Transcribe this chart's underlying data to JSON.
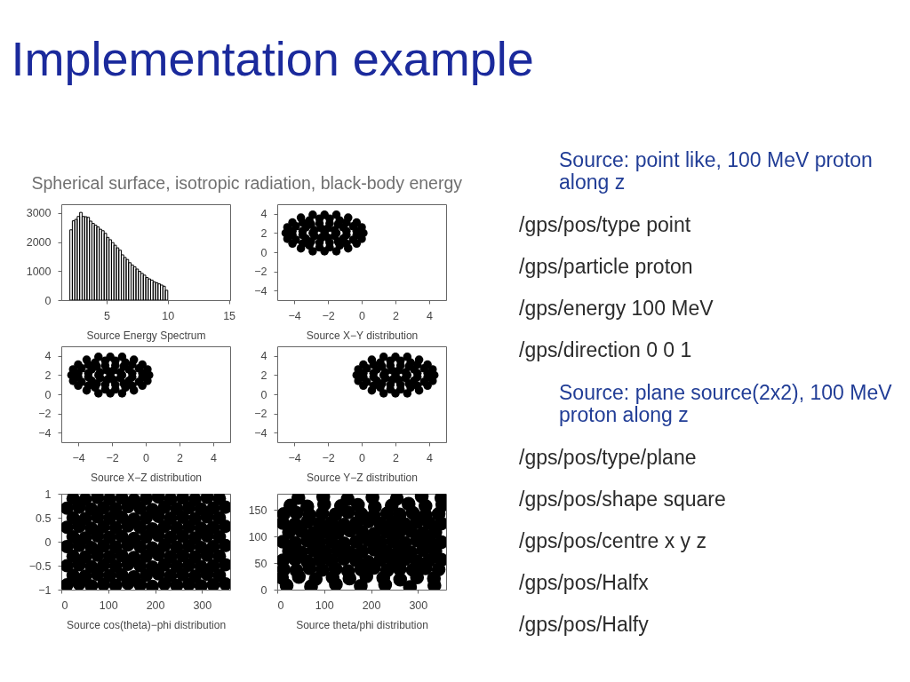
{
  "chart_data": [
    {
      "type": "other",
      "title": "Implementation example"
    },
    {
      "type": "histogram",
      "title": "Spherical surface, isotropic radiation, black-body energy",
      "xlabel": "Source Energy Spectrum",
      "color": "#000000",
      "bins": [
        2.0,
        2.2,
        2.4,
        2.6,
        2.8,
        3.0,
        3.2,
        3.4,
        3.6,
        3.8,
        4.0,
        4.2,
        4.4,
        4.6,
        4.8,
        5.0,
        5.2,
        5.4,
        5.6,
        5.8,
        6.0,
        6.2,
        6.4,
        6.6,
        6.8,
        7.0,
        7.2,
        7.4,
        7.6,
        7.8,
        8.0,
        8.2,
        8.4,
        8.6,
        8.8,
        9.0,
        9.2,
        9.4,
        9.6,
        9.8,
        10.0
      ],
      "values": [
        2420,
        2730,
        2780,
        2880,
        3020,
        2880,
        2870,
        2850,
        2720,
        2640,
        2580,
        2520,
        2440,
        2390,
        2300,
        2160,
        2080,
        1980,
        1890,
        1800,
        1720,
        1560,
        1470,
        1400,
        1290,
        1210,
        1150,
        1070,
        990,
        920,
        860,
        780,
        730,
        690,
        630,
        600,
        560,
        520,
        480,
        340
      ],
      "xlim": [
        1.3,
        15.1
      ],
      "ylim": [
        0,
        3300
      ],
      "xticks": [
        5,
        10,
        15
      ],
      "yticks": [
        0,
        1000,
        2000,
        3000
      ]
    },
    {
      "type": "scatter",
      "xlabel": "Source X−Y distribution",
      "marker": "circle",
      "xlim": [
        -5,
        5
      ],
      "ylim": [
        -5,
        5
      ],
      "xticks": [
        -4,
        -2,
        0,
        2,
        4
      ],
      "yticks": [
        -4,
        -2,
        0,
        2,
        4
      ],
      "series": [
        {
          "color": "#000000",
          "x": [
            0.1,
            0.0,
            -0.3,
            -0.8,
            -1.5,
            -2.2,
            -2.9,
            -3.6,
            -4.1,
            -4.4,
            -4.5,
            -4.4,
            -4.1,
            -3.6,
            -2.9,
            -2.2,
            -1.5,
            -0.8,
            -0.3,
            0.0,
            -0.3,
            -0.5,
            -0.9,
            -1.3,
            -1.9,
            -2.5,
            -3.1,
            -3.5,
            -3.9,
            -4.1,
            -4.1,
            -3.9,
            -3.5,
            -3.1,
            -2.5,
            -1.9,
            -1.3,
            -0.9,
            -0.5,
            -0.3,
            -0.9,
            -1.1,
            -1.4,
            -1.9,
            -2.5,
            -3.0,
            -3.3,
            -3.5,
            -3.5,
            -3.3,
            -3.0,
            -2.5,
            -1.9,
            -1.4,
            -1.1,
            -0.9,
            -1.5,
            -1.6,
            -2.0,
            -2.4,
            -2.8,
            -2.9,
            -2.8,
            -2.4,
            -2.0,
            -1.6,
            -2.2
          ],
          "values": [
            2.0,
            2.6,
            3.1,
            3.6,
            3.9,
            3.9,
            3.9,
            3.6,
            3.1,
            2.6,
            2.0,
            1.4,
            0.9,
            0.4,
            0.1,
            0.1,
            0.1,
            0.4,
            0.9,
            1.4,
            2.2,
            2.7,
            3.1,
            3.3,
            3.5,
            3.5,
            3.3,
            3.1,
            2.7,
            2.2,
            1.8,
            1.3,
            0.9,
            0.7,
            0.5,
            0.5,
            0.7,
            0.9,
            1.3,
            1.8,
            2.2,
            2.6,
            2.9,
            3.0,
            3.0,
            2.9,
            2.6,
            2.2,
            1.8,
            1.4,
            1.1,
            1.0,
            1.0,
            1.1,
            1.4,
            1.8,
            2.0,
            2.3,
            2.5,
            2.5,
            2.3,
            2.0,
            1.7,
            1.5,
            1.5,
            1.7,
            2.0
          ]
        }
      ]
    },
    {
      "type": "scatter",
      "xlabel": "Source X−Z distribution",
      "marker": "circle",
      "xlim": [
        -5,
        5
      ],
      "ylim": [
        -5,
        5
      ],
      "xticks": [
        -4,
        -2,
        0,
        2,
        4
      ],
      "yticks": [
        -4,
        -2,
        0,
        2,
        4
      ],
      "series": [
        {
          "color": "#000000",
          "x": [
            0.2,
            0.1,
            -0.2,
            -0.7,
            -1.4,
            -2.1,
            -2.8,
            -3.5,
            -4.0,
            -4.3,
            -4.4,
            -4.3,
            -4.0,
            -3.5,
            -2.8,
            -2.1,
            -1.4,
            -0.7,
            -0.2,
            0.1,
            -0.2,
            -0.4,
            -0.8,
            -1.2,
            -1.8,
            -2.4,
            -3.0,
            -3.4,
            -3.8,
            -4.0,
            -4.0,
            -3.8,
            -3.4,
            -3.0,
            -2.4,
            -1.8,
            -1.2,
            -0.8,
            -0.4,
            -0.2,
            -0.8,
            -1.0,
            -1.3,
            -1.8,
            -2.4,
            -2.9,
            -3.2,
            -3.4,
            -3.4,
            -3.2,
            -2.9,
            -2.4,
            -1.8,
            -1.3,
            -1.0,
            -0.8,
            -1.4,
            -1.5,
            -1.9,
            -2.3,
            -2.7,
            -2.8,
            -2.7,
            -2.3,
            -1.9,
            -1.5,
            -2.1
          ],
          "values": [
            2.0,
            2.6,
            3.1,
            3.6,
            3.9,
            3.9,
            3.9,
            3.6,
            3.1,
            2.6,
            2.0,
            1.4,
            0.9,
            0.4,
            0.1,
            0.1,
            0.1,
            0.4,
            0.9,
            1.4,
            2.2,
            2.7,
            3.1,
            3.3,
            3.5,
            3.5,
            3.3,
            3.1,
            2.7,
            2.2,
            1.8,
            1.3,
            0.9,
            0.7,
            0.5,
            0.5,
            0.7,
            0.9,
            1.3,
            1.8,
            2.2,
            2.6,
            2.9,
            3.0,
            3.0,
            2.9,
            2.6,
            2.2,
            1.8,
            1.4,
            1.1,
            1.0,
            1.0,
            1.1,
            1.4,
            1.8,
            2.0,
            2.3,
            2.5,
            2.5,
            2.3,
            2.0,
            1.7,
            1.5,
            1.5,
            1.7,
            2.0
          ]
        }
      ]
    },
    {
      "type": "scatter",
      "xlabel": "Source Y−Z distribution",
      "marker": "circle",
      "xlim": [
        -5,
        5
      ],
      "ylim": [
        -5,
        5
      ],
      "xticks": [
        -4,
        -2,
        0,
        2,
        4
      ],
      "yticks": [
        -4,
        -2,
        0,
        2,
        4
      ],
      "series": [
        {
          "color": "#000000",
          "x": [
            4.3,
            4.2,
            3.9,
            3.4,
            2.7,
            2.0,
            1.3,
            0.6,
            0.1,
            -0.2,
            -0.3,
            -0.2,
            0.1,
            0.6,
            1.3,
            2.0,
            2.7,
            3.4,
            3.9,
            4.2,
            3.9,
            3.7,
            3.3,
            2.9,
            2.3,
            1.7,
            1.1,
            0.7,
            0.3,
            0.1,
            0.1,
            0.3,
            0.7,
            1.1,
            1.7,
            2.3,
            2.9,
            3.3,
            3.7,
            3.9,
            3.3,
            3.1,
            2.8,
            2.3,
            1.7,
            1.2,
            0.9,
            0.7,
            0.7,
            0.9,
            1.2,
            1.7,
            2.3,
            2.8,
            3.1,
            3.3,
            2.7,
            2.6,
            2.2,
            1.8,
            1.4,
            1.3,
            1.4,
            1.8,
            2.2,
            2.6,
            2.0
          ],
          "values": [
            2.0,
            2.6,
            3.1,
            3.6,
            3.9,
            3.9,
            3.9,
            3.6,
            3.1,
            2.6,
            2.0,
            1.4,
            0.9,
            0.4,
            0.1,
            0.1,
            0.1,
            0.4,
            0.9,
            1.4,
            2.2,
            2.7,
            3.1,
            3.3,
            3.5,
            3.5,
            3.3,
            3.1,
            2.7,
            2.2,
            1.8,
            1.3,
            0.9,
            0.7,
            0.5,
            0.5,
            0.7,
            0.9,
            1.3,
            1.8,
            2.2,
            2.6,
            2.9,
            3.0,
            3.0,
            2.9,
            2.6,
            2.2,
            1.8,
            1.4,
            1.1,
            1.0,
            1.0,
            1.1,
            1.4,
            1.8,
            2.0,
            2.3,
            2.5,
            2.5,
            2.3,
            2.0,
            1.7,
            1.5,
            1.5,
            1.7,
            2.0
          ]
        }
      ]
    },
    {
      "type": "scatter",
      "xlabel": "Source cos(theta)−phi distribution",
      "marker": "circle",
      "xlim": [
        0,
        360
      ],
      "ylim": [
        -1,
        1
      ],
      "xticks": [
        0,
        100,
        200,
        300
      ],
      "yticks": [
        -1,
        -0.5,
        0,
        0.5,
        1
      ],
      "series": [
        {
          "color": "#000000",
          "x": [
            12,
            38,
            64,
            90,
            116,
            142,
            168,
            194,
            220,
            246,
            272,
            298,
            324,
            350,
            25,
            51,
            77,
            103,
            129,
            155,
            181,
            207,
            233,
            259,
            285,
            311,
            337,
            12,
            38,
            64,
            90,
            116,
            142,
            168,
            194,
            220,
            246,
            272,
            298,
            324,
            350,
            25,
            51,
            77,
            103,
            129,
            155,
            181,
            207,
            233,
            259,
            285,
            311,
            337,
            12,
            38,
            64,
            90,
            116,
            142,
            168,
            194,
            220,
            246,
            272,
            298,
            324,
            350,
            25,
            51,
            77,
            103,
            129,
            155,
            181,
            207,
            233,
            259,
            285,
            311,
            337,
            12,
            38,
            64,
            90,
            116,
            142,
            168,
            194,
            220,
            246,
            272,
            298,
            324,
            350,
            25,
            51,
            77,
            103,
            129,
            155,
            181,
            207,
            233,
            259,
            285,
            311,
            337,
            12,
            38,
            64,
            90,
            116,
            142,
            168,
            194,
            220,
            246,
            272,
            298,
            324,
            350,
            25,
            51,
            77,
            103,
            129,
            155,
            181,
            207,
            233,
            259,
            285,
            311,
            337
          ],
          "values": [
            -0.9,
            -0.88,
            -0.92,
            -0.89,
            -0.91,
            -0.87,
            -0.9,
            -0.93,
            -0.88,
            -0.91,
            -0.89,
            -0.92,
            -0.9,
            -0.88,
            -0.7,
            -0.72,
            -0.68,
            -0.71,
            -0.69,
            -0.73,
            -0.7,
            -0.67,
            -0.71,
            -0.69,
            -0.72,
            -0.68,
            -0.7,
            -0.5,
            -0.48,
            -0.52,
            -0.49,
            -0.51,
            -0.47,
            -0.5,
            -0.53,
            -0.48,
            -0.51,
            -0.49,
            -0.52,
            -0.5,
            -0.48,
            -0.3,
            -0.32,
            -0.28,
            -0.31,
            -0.29,
            -0.33,
            -0.3,
            -0.27,
            -0.31,
            -0.29,
            -0.32,
            -0.28,
            -0.3,
            -0.1,
            -0.08,
            -0.12,
            -0.09,
            -0.11,
            -0.07,
            -0.1,
            -0.13,
            -0.08,
            -0.11,
            -0.09,
            -0.12,
            -0.1,
            -0.08,
            0.1,
            0.08,
            0.12,
            0.09,
            0.11,
            0.07,
            0.1,
            0.13,
            0.09,
            0.11,
            0.08,
            0.12,
            0.1,
            0.3,
            0.32,
            0.28,
            0.31,
            0.29,
            0.33,
            0.3,
            0.27,
            0.32,
            0.29,
            0.31,
            0.28,
            0.3,
            0.32,
            0.5,
            0.48,
            0.52,
            0.49,
            0.51,
            0.47,
            0.5,
            0.53,
            0.49,
            0.51,
            0.48,
            0.52,
            0.5,
            0.7,
            0.72,
            0.68,
            0.71,
            0.69,
            0.73,
            0.7,
            0.67,
            0.72,
            0.69,
            0.71,
            0.68,
            0.7,
            0.72,
            0.9,
            0.88,
            0.92,
            0.89,
            0.91,
            0.87,
            0.9,
            0.93,
            0.89,
            0.91,
            0.88,
            0.92,
            0.9
          ]
        }
      ]
    },
    {
      "type": "scatter",
      "xlabel": "Source theta/phi distribution",
      "marker": "circle",
      "xlim": [
        0,
        360
      ],
      "ylim": [
        0,
        180
      ],
      "xticks": [
        0,
        100,
        200,
        300
      ],
      "yticks": [
        0,
        50,
        100,
        150
      ],
      "series": [
        {
          "color": "#000000",
          "x": [
            20,
            72,
            125,
            178,
            230,
            283,
            335,
            10,
            46,
            82,
            118,
            154,
            190,
            226,
            262,
            298,
            334,
            14,
            41,
            69,
            96,
            124,
            151,
            179,
            206,
            234,
            261,
            289,
            316,
            344,
            12,
            38,
            64,
            90,
            116,
            142,
            168,
            194,
            220,
            246,
            272,
            298,
            324,
            350,
            25,
            51,
            77,
            103,
            129,
            155,
            181,
            207,
            233,
            259,
            285,
            311,
            337,
            12,
            38,
            64,
            90,
            116,
            142,
            168,
            194,
            220,
            246,
            272,
            298,
            324,
            350,
            25,
            51,
            77,
            103,
            129,
            155,
            181,
            207,
            233,
            259,
            285,
            311,
            337,
            12,
            38,
            64,
            90,
            116,
            142,
            168,
            194,
            220,
            246,
            272,
            298,
            324,
            350,
            14,
            41,
            69,
            96,
            124,
            151,
            179,
            206,
            234,
            261,
            289,
            316,
            344,
            28,
            64,
            100,
            136,
            172,
            208,
            244,
            280,
            316,
            352,
            45,
            98,
            150,
            203,
            255,
            308,
            350
          ],
          "values": [
            8,
            6,
            10,
            7,
            9,
            5,
            8,
            22,
            24,
            20,
            23,
            21,
            25,
            22,
            19,
            23,
            21,
            38,
            36,
            40,
            37,
            39,
            35,
            38,
            41,
            36,
            39,
            37,
            40,
            38,
            55,
            57,
            53,
            56,
            54,
            58,
            55,
            52,
            56,
            54,
            57,
            53,
            55,
            56,
            72,
            70,
            74,
            71,
            73,
            69,
            72,
            75,
            71,
            73,
            70,
            74,
            72,
            90,
            88,
            92,
            89,
            91,
            87,
            90,
            93,
            89,
            91,
            88,
            92,
            90,
            89,
            108,
            110,
            106,
            109,
            107,
            111,
            108,
            105,
            109,
            107,
            110,
            106,
            108,
            125,
            123,
            127,
            124,
            126,
            122,
            125,
            128,
            124,
            126,
            123,
            127,
            125,
            124,
            142,
            144,
            140,
            143,
            141,
            145,
            142,
            139,
            143,
            141,
            144,
            140,
            142,
            158,
            156,
            160,
            157,
            159,
            155,
            158,
            161,
            157,
            159,
            172,
            174,
            170,
            173,
            171,
            175,
            172
          ]
        }
      ]
    },
    {
      "type": "other",
      "title": "Source: point like, 100 MeV proton along z",
      "annotations": [
        "/gps/pos/type point",
        "/gps/particle proton",
        "/gps/energy 100 MeV",
        "/gps/direction 0 0 1"
      ]
    },
    {
      "type": "other",
      "title": "Source: plane source(2x2), 100 MeV proton along z",
      "annotations": [
        "/gps/pos/type/plane",
        "/gps/pos/shape square",
        "/gps/pos/centre x y z",
        "/gps/pos/Halfx",
        "/gps/pos/Halfy"
      ]
    }
  ]
}
